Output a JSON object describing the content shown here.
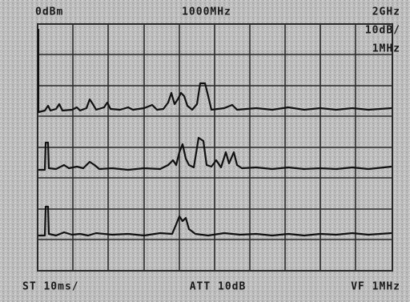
{
  "screen": {
    "top_left": "0dBm",
    "top_center": "1000MHz",
    "top_right": "2GHz",
    "scale": "10dB/",
    "bandwidth": "1MHz",
    "bottom_left": "ST 10ms/",
    "bottom_center": "ATT 10dB",
    "bottom_right": "VF 1MHz"
  }
}
